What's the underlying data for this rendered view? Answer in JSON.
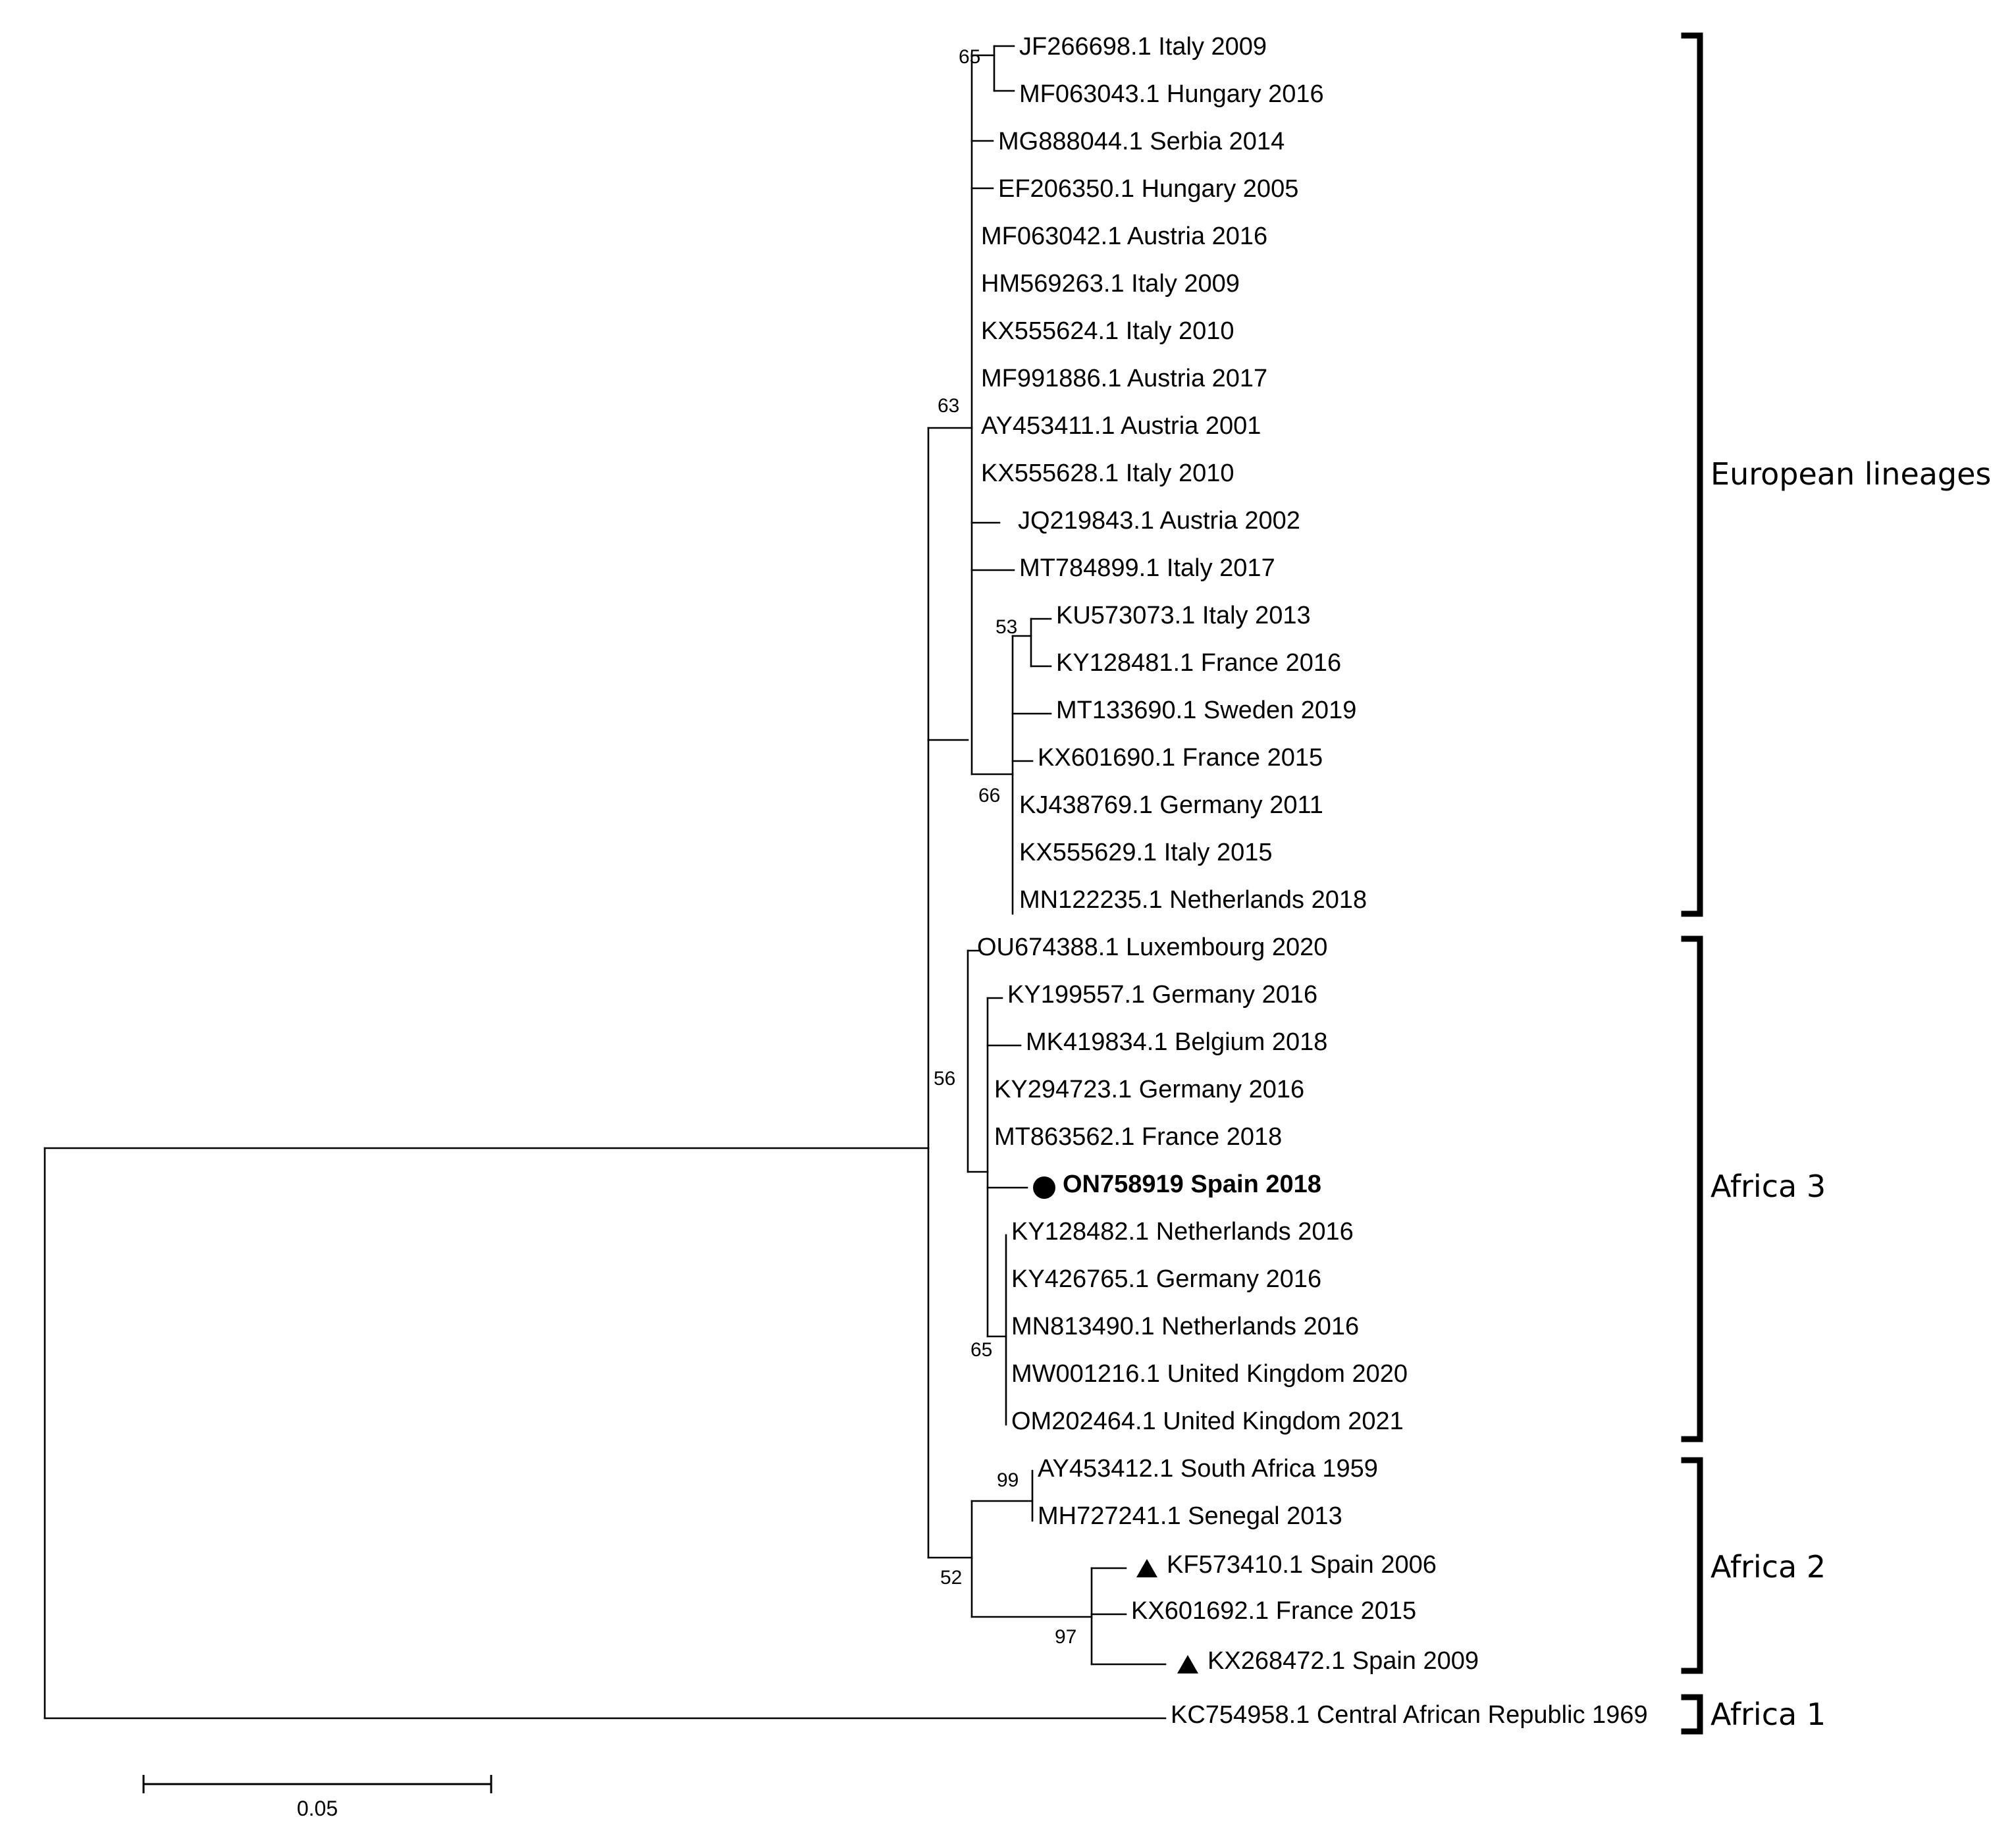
{
  "figure": {
    "type": "phylogenetic-tree",
    "scale_bar_label": "0.05"
  },
  "leaves": [
    {
      "label": "JF266698.1 Italy 2009",
      "marker": "none"
    },
    {
      "label": "MF063043.1 Hungary 2016",
      "marker": "none"
    },
    {
      "label": "MG888044.1 Serbia 2014",
      "marker": "none"
    },
    {
      "label": "EF206350.1 Hungary 2005",
      "marker": "none"
    },
    {
      "label": "MF063042.1 Austria 2016",
      "marker": "none"
    },
    {
      "label": "HM569263.1 Italy 2009",
      "marker": "none"
    },
    {
      "label": "KX555624.1 Italy 2010",
      "marker": "none"
    },
    {
      "label": "MF991886.1 Austria 2017",
      "marker": "none"
    },
    {
      "label": "AY453411.1 Austria 2001",
      "marker": "none"
    },
    {
      "label": "KX555628.1 Italy 2010",
      "marker": "none"
    },
    {
      "label": "JQ219843.1 Austria 2002",
      "marker": "none"
    },
    {
      "label": "MT784899.1 Italy 2017",
      "marker": "none"
    },
    {
      "label": "KU573073.1 Italy 2013",
      "marker": "none"
    },
    {
      "label": "KY128481.1 France 2016",
      "marker": "none"
    },
    {
      "label": "MT133690.1 Sweden 2019",
      "marker": "none"
    },
    {
      "label": "KX601690.1 France 2015",
      "marker": "none"
    },
    {
      "label": "KJ438769.1 Germany 2011",
      "marker": "none"
    },
    {
      "label": "KX555629.1 Italy 2015",
      "marker": "none"
    },
    {
      "label": "MN122235.1 Netherlands 2018",
      "marker": "none"
    },
    {
      "label": "OU674388.1 Luxembourg 2020",
      "marker": "none"
    },
    {
      "label": "KY199557.1 Germany 2016",
      "marker": "none"
    },
    {
      "label": "MK419834.1 Belgium 2018",
      "marker": "none"
    },
    {
      "label": "KY294723.1 Germany 2016",
      "marker": "none"
    },
    {
      "label": "MT863562.1 France 2018",
      "marker": "none"
    },
    {
      "label": "ON758919 Spain 2018",
      "marker": "circle",
      "bold": true
    },
    {
      "label": "KY128482.1 Netherlands 2016",
      "marker": "none"
    },
    {
      "label": "KY426765.1 Germany 2016",
      "marker": "none"
    },
    {
      "label": "MN813490.1 Netherlands 2016",
      "marker": "none"
    },
    {
      "label": "MW001216.1 United Kingdom 2020",
      "marker": "none"
    },
    {
      "label": "OM202464.1 United Kingdom 2021",
      "marker": "none"
    },
    {
      "label": "AY453412.1 South Africa 1959",
      "marker": "none"
    },
    {
      "label": "MH727241.1 Senegal 2013",
      "marker": "none"
    },
    {
      "label": "KF573410.1 Spain 2006",
      "marker": "triangle"
    },
    {
      "label": "KX601692.1 France 2015",
      "marker": "none"
    },
    {
      "label": "KX268472.1 Spain 2009",
      "marker": "triangle"
    },
    {
      "label": "KC754958.1 Central African Republic 1969",
      "marker": "none"
    }
  ],
  "support_values": [
    "65",
    "63",
    "53",
    "66",
    "56",
    "65",
    "99",
    "52",
    "97"
  ],
  "clades": [
    {
      "name": "European lineages",
      "first_leaf": 0,
      "last_leaf": 18
    },
    {
      "name": "Africa 3",
      "first_leaf": 19,
      "last_leaf": 29
    },
    {
      "name": "Africa 2",
      "first_leaf": 30,
      "last_leaf": 34
    },
    {
      "name": "Africa 1",
      "first_leaf": 35,
      "last_leaf": 35
    }
  ]
}
